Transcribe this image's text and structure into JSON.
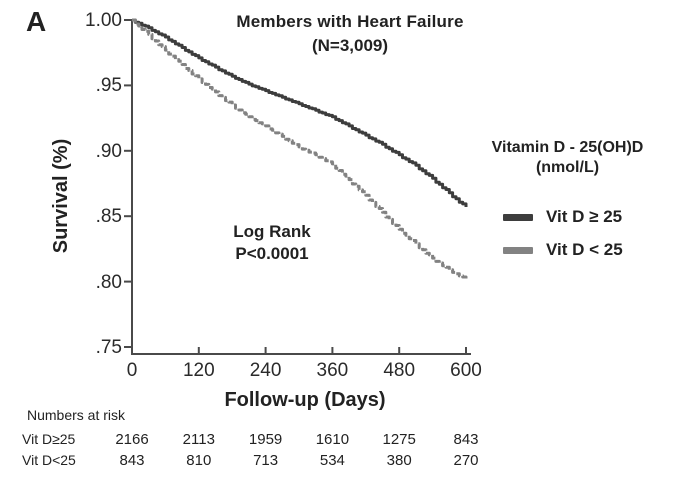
{
  "panel_label": "A",
  "colors": {
    "text": "#222222",
    "axis": "#4a4a4a",
    "background": "#ffffff"
  },
  "chart_data": {
    "type": "line",
    "variant": "kaplan_meier_step",
    "title": "Members with Heart Failure",
    "subtitle": "(N=3,009)",
    "xlabel": "Follow-up (Days)",
    "ylabel": "Survival (%)",
    "xlim": [
      0,
      600
    ],
    "ylim": [
      0.75,
      1.0
    ],
    "grid": false,
    "x_ticks": [
      "0",
      "120",
      "240",
      "360",
      "480",
      "600"
    ],
    "x_tick_values": [
      0,
      120,
      240,
      360,
      480,
      600
    ],
    "y_ticks": [
      "1.00",
      ".95",
      ".90",
      ".85",
      ".80",
      ".75"
    ],
    "y_tick_values": [
      1.0,
      0.95,
      0.9,
      0.85,
      0.8,
      0.75
    ],
    "annotation": {
      "line1": "Log Rank",
      "line2": "P<0.0001"
    },
    "legend": {
      "title_line1": "Vitamin D - 25(OH)D",
      "title_line2": "(nmol/L)",
      "position": "right"
    },
    "series": [
      {
        "name": "Vit D ≥ 25",
        "color": "#3d3d3d",
        "style": "solid",
        "x": [
          0,
          30,
          60,
          90,
          120,
          150,
          180,
          210,
          240,
          270,
          300,
          330,
          360,
          390,
          420,
          450,
          480,
          510,
          540,
          570,
          600
        ],
        "values": [
          1.0,
          0.994,
          0.987,
          0.979,
          0.971,
          0.964,
          0.957,
          0.951,
          0.946,
          0.941,
          0.936,
          0.931,
          0.926,
          0.919,
          0.912,
          0.905,
          0.897,
          0.889,
          0.879,
          0.868,
          0.857
        ]
      },
      {
        "name": "Vit D < 25",
        "color": "#828282",
        "style": "dashed",
        "x": [
          0,
          30,
          60,
          90,
          120,
          150,
          180,
          210,
          240,
          270,
          300,
          330,
          360,
          390,
          420,
          450,
          480,
          510,
          540,
          570,
          600
        ],
        "values": [
          1.0,
          0.989,
          0.977,
          0.966,
          0.955,
          0.945,
          0.935,
          0.926,
          0.919,
          0.911,
          0.903,
          0.897,
          0.89,
          0.878,
          0.866,
          0.853,
          0.84,
          0.829,
          0.818,
          0.809,
          0.802
        ]
      }
    ],
    "numbers_at_risk": {
      "label": "Numbers at risk",
      "rows": [
        {
          "label": "Vit D≥25",
          "values": [
            2166,
            2113,
            1959,
            1610,
            1275,
            843
          ]
        },
        {
          "label": "Vit D<25",
          "values": [
            843,
            810,
            713,
            534,
            380,
            270
          ]
        }
      ]
    }
  }
}
